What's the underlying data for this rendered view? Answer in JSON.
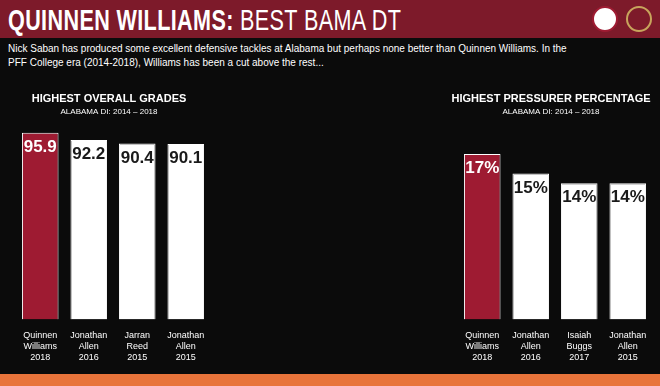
{
  "header": {
    "title": [
      "QUINNEN WILLIAMS:",
      "BEST BAMA DT"
    ],
    "text": "Nick Saban has produced some excellent defensive tackles at Alabama but perhaps none better than Quinnen Williams. In the PFF College era (2014-2018), Williams has been a cut above the rest..."
  },
  "chart_data": [
    {
      "type": "bar",
      "title": "HIGHEST OVERALL GRADES",
      "subtitle": "ALABAMA DI: 2014 – 2018",
      "categories": [
        [
          "Quinnen",
          "Williams",
          "2018"
        ],
        [
          "Jonathan",
          "Allen",
          "2016"
        ],
        [
          "Jarran",
          "Reed",
          "2015"
        ],
        [
          "Jonathan",
          "Allen",
          "2015"
        ]
      ],
      "values": [
        95.9,
        92.2,
        90.4,
        90.1
      ],
      "colors": [
        "#9e1b32",
        "#ffffff",
        "#ffffff",
        "#ffffff"
      ],
      "ylim": [
        0,
        100
      ],
      "yticks": [
        0,
        100
      ],
      "grid": false,
      "data_labels": true,
      "tick_labels": "x"
    },
    {
      "type": "bar",
      "title": "HIGHEST PRESSURER PERCENTAGE",
      "subtitle": "ALABAMA DI: 2014 – 2018",
      "categories": [
        [
          "Quinnen",
          "Williams",
          "2018"
        ],
        [
          "Jonathan",
          "Allen",
          "2016"
        ],
        [
          "Isaiah",
          "Buggs",
          "2017"
        ],
        [
          "Jonathan",
          "Allen",
          "2015"
        ]
      ],
      "values": [
        17,
        15,
        14,
        14
      ],
      "value_labels": [
        "17%",
        "15%",
        "14%",
        "14%"
      ],
      "colors": [
        "#9e1b32",
        "#ffffff",
        "#ffffff",
        "#ffffff"
      ],
      "ylim": [
        0,
        20
      ],
      "yticks": [
        0,
        20
      ],
      "grid": false,
      "data_labels": true,
      "tick_labels": "x"
    }
  ]
}
